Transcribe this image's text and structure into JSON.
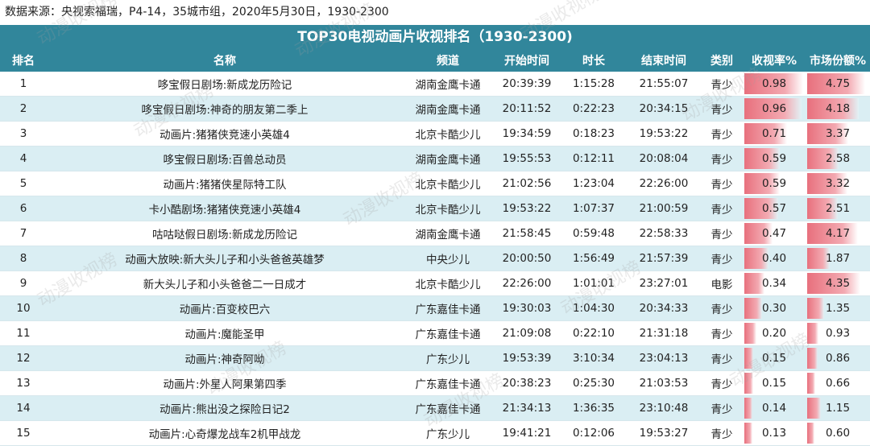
{
  "source_note": "数据来源：央视索福瑞，P4-14，35城市组，2020年5月30日，1930-2300",
  "title": "TOP30电视动画片收视排名（1930-2300)",
  "watermark": "动漫收视榜",
  "bar_color": "#e8707d",
  "header_color": "#31869b",
  "columns": [
    "排名",
    "名称",
    "频道",
    "开始时间",
    "时长",
    "结束时间",
    "类别",
    "收视率%",
    "市场份额%"
  ],
  "rating_bar_max": 1.0,
  "share_bar_max": 5.0,
  "rows": [
    {
      "rank": "1",
      "name": "哆宝假日剧场:新成龙历险记",
      "channel": "湖南金鹰卡通",
      "start": "20:39:39",
      "duration": "1:15:28",
      "end": "21:55:07",
      "category": "青少",
      "rating": "0.98",
      "share": "4.75"
    },
    {
      "rank": "2",
      "name": "哆宝假日剧场:神奇的朋友第二季上",
      "channel": "湖南金鹰卡通",
      "start": "20:11:52",
      "duration": "0:22:23",
      "end": "20:34:15",
      "category": "青少",
      "rating": "0.96",
      "share": "4.18"
    },
    {
      "rank": "3",
      "name": "动画片:猪猪侠竞速小英雄4",
      "channel": "北京卡酷少儿",
      "start": "19:34:59",
      "duration": "0:18:23",
      "end": "19:53:22",
      "category": "青少",
      "rating": "0.71",
      "share": "3.37"
    },
    {
      "rank": "4",
      "name": "哆宝假日剧场:百兽总动员",
      "channel": "湖南金鹰卡通",
      "start": "19:55:53",
      "duration": "0:12:11",
      "end": "20:08:04",
      "category": "青少",
      "rating": "0.59",
      "share": "2.58"
    },
    {
      "rank": "5",
      "name": "动画片:猪猪侠星际特工队",
      "channel": "北京卡酷少儿",
      "start": "21:02:56",
      "duration": "1:23:04",
      "end": "22:26:00",
      "category": "青少",
      "rating": "0.59",
      "share": "3.32"
    },
    {
      "rank": "6",
      "name": "卡小酷剧场:猪猪侠竞速小英雄4",
      "channel": "北京卡酷少儿",
      "start": "19:53:22",
      "duration": "1:07:37",
      "end": "21:00:59",
      "category": "青少",
      "rating": "0.57",
      "share": "2.51"
    },
    {
      "rank": "7",
      "name": "咕咕哒假日剧场:新成龙历险记",
      "channel": "湖南金鹰卡通",
      "start": "21:58:45",
      "duration": "0:59:48",
      "end": "22:58:33",
      "category": "青少",
      "rating": "0.47",
      "share": "4.17"
    },
    {
      "rank": "8",
      "name": "动画大放映:新大头儿子和小头爸爸英雄梦",
      "channel": "中央少儿",
      "start": "20:00:50",
      "duration": "1:56:49",
      "end": "21:57:39",
      "category": "青少",
      "rating": "0.40",
      "share": "1.87"
    },
    {
      "rank": "9",
      "name": "新大头儿子和小头爸爸二一日成才",
      "channel": "北京卡酷少儿",
      "start": "22:26:00",
      "duration": "1:01:01",
      "end": "23:27:01",
      "category": "电影",
      "rating": "0.34",
      "share": "4.35"
    },
    {
      "rank": "10",
      "name": "动画片:百变校巴六",
      "channel": "广东嘉佳卡通",
      "start": "19:30:03",
      "duration": "1:04:30",
      "end": "20:34:33",
      "category": "青少",
      "rating": "0.30",
      "share": "1.35"
    },
    {
      "rank": "11",
      "name": "动画片:魔能圣甲",
      "channel": "广东嘉佳卡通",
      "start": "21:09:08",
      "duration": "0:22:10",
      "end": "21:31:18",
      "category": "青少",
      "rating": "0.20",
      "share": "0.93"
    },
    {
      "rank": "12",
      "name": "动画片:神奇阿呦",
      "channel": "广东少儿",
      "start": "19:53:39",
      "duration": "3:10:34",
      "end": "23:04:13",
      "category": "青少",
      "rating": "0.15",
      "share": "0.86"
    },
    {
      "rank": "13",
      "name": "动画片:外星人阿果第四季",
      "channel": "广东嘉佳卡通",
      "start": "20:38:23",
      "duration": "0:25:30",
      "end": "21:03:53",
      "category": "青少",
      "rating": "0.15",
      "share": "0.66"
    },
    {
      "rank": "14",
      "name": "动画片:熊出没之探险日记2",
      "channel": "广东嘉佳卡通",
      "start": "21:34:13",
      "duration": "1:36:35",
      "end": "23:10:48",
      "category": "青少",
      "rating": "0.14",
      "share": "1.15"
    },
    {
      "rank": "15",
      "name": "动画片:心奇爆龙战车2机甲战龙",
      "channel": "广东少儿",
      "start": "19:41:21",
      "duration": "0:12:06",
      "end": "19:53:27",
      "category": "青少",
      "rating": "0.13",
      "share": "0.60"
    }
  ]
}
